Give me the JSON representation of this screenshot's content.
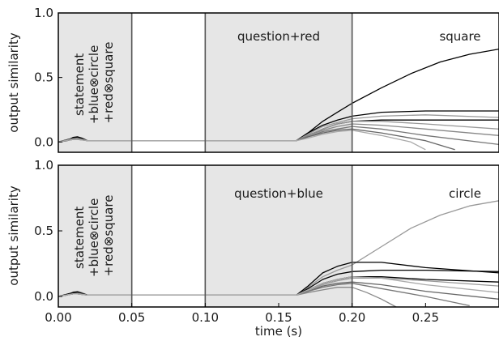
{
  "chart_data": [
    {
      "type": "line",
      "ylabel": "output similarity",
      "xlim": [
        0,
        0.3
      ],
      "ylim": [
        -0.08,
        1.0
      ],
      "yticks": [
        "0.0",
        "0.5",
        "1.0"
      ],
      "shaded_ranges": [
        [
          0,
          0.05
        ],
        [
          0.1,
          0.2
        ]
      ],
      "boundaries": [
        0.05,
        0.1,
        0.2
      ],
      "annotations": {
        "phase1": [
          "statement",
          "+blue⊗circle",
          "+red⊗square"
        ],
        "phase2": "question+red",
        "answer": "square"
      },
      "series": [
        {
          "color": "#000000",
          "x": [
            0,
            0.006,
            0.01,
            0.013,
            0.016,
            0.02,
            0.05,
            0.1,
            0.15,
            0.162,
            0.17,
            0.18,
            0.19,
            0.2,
            0.22,
            0.24,
            0.26,
            0.28,
            0.3
          ],
          "y": [
            0,
            0.01,
            0.035,
            0.04,
            0.03,
            0.01,
            0.01,
            0.01,
            0.01,
            0.01,
            0.07,
            0.16,
            0.23,
            0.3,
            0.42,
            0.53,
            0.62,
            0.68,
            0.72
          ]
        },
        {
          "color": "#000000",
          "x": [
            0,
            0.01,
            0.013,
            0.02,
            0.05,
            0.1,
            0.15,
            0.162,
            0.17,
            0.18,
            0.19,
            0.2,
            0.22,
            0.25,
            0.3
          ],
          "y": [
            0,
            0.03,
            0.035,
            0.01,
            0.01,
            0.01,
            0.01,
            0.01,
            0.07,
            0.13,
            0.17,
            0.2,
            0.23,
            0.24,
            0.24
          ]
        },
        {
          "color": "#000000",
          "x": [
            0,
            0.01,
            0.013,
            0.02,
            0.05,
            0.1,
            0.15,
            0.162,
            0.17,
            0.18,
            0.19,
            0.2,
            0.22,
            0.25,
            0.3
          ],
          "y": [
            0,
            0.02,
            0.03,
            0.01,
            0.01,
            0.01,
            0.01,
            0.01,
            0.05,
            0.1,
            0.14,
            0.16,
            0.17,
            0.17,
            0.17
          ]
        },
        {
          "color": "#999999",
          "x": [
            0,
            0.01,
            0.013,
            0.02,
            0.05,
            0.1,
            0.15,
            0.162,
            0.17,
            0.18,
            0.19,
            0.2,
            0.22,
            0.25,
            0.3
          ],
          "y": [
            0,
            0.025,
            0.03,
            0.01,
            0.01,
            0.01,
            0.01,
            0.01,
            0.06,
            0.12,
            0.15,
            0.18,
            0.2,
            0.21,
            0.19
          ]
        },
        {
          "color": "#999999",
          "x": [
            0,
            0.01,
            0.013,
            0.02,
            0.05,
            0.1,
            0.15,
            0.162,
            0.17,
            0.18,
            0.19,
            0.2,
            0.22,
            0.25,
            0.3
          ],
          "y": [
            0,
            0.02,
            0.025,
            0.01,
            0.01,
            0.01,
            0.01,
            0.01,
            0.05,
            0.1,
            0.14,
            0.16,
            0.16,
            0.14,
            0.1
          ]
        },
        {
          "color": "#888888",
          "x": [
            0,
            0.01,
            0.013,
            0.02,
            0.05,
            0.1,
            0.15,
            0.162,
            0.17,
            0.18,
            0.19,
            0.2,
            0.22,
            0.25,
            0.3
          ],
          "y": [
            0,
            0.02,
            0.025,
            0.01,
            0.01,
            0.01,
            0.01,
            0.01,
            0.05,
            0.09,
            0.12,
            0.14,
            0.13,
            0.1,
            0.05
          ]
        },
        {
          "color": "#777777",
          "x": [
            0,
            0.01,
            0.013,
            0.02,
            0.05,
            0.1,
            0.15,
            0.162,
            0.17,
            0.18,
            0.19,
            0.2,
            0.22,
            0.25,
            0.3
          ],
          "y": [
            0,
            0.02,
            0.025,
            0.01,
            0.01,
            0.01,
            0.01,
            0.01,
            0.04,
            0.08,
            0.1,
            0.12,
            0.1,
            0.05,
            -0.02
          ]
        },
        {
          "color": "#666666",
          "x": [
            0,
            0.01,
            0.013,
            0.02,
            0.05,
            0.1,
            0.15,
            0.162,
            0.17,
            0.18,
            0.19,
            0.2,
            0.22,
            0.25,
            0.27
          ],
          "y": [
            0,
            0.02,
            0.02,
            0.01,
            0.01,
            0.01,
            0.01,
            0.01,
            0.04,
            0.07,
            0.09,
            0.1,
            0.07,
            0.01,
            -0.06
          ]
        },
        {
          "color": "#aaaaaa",
          "x": [
            0,
            0.01,
            0.013,
            0.02,
            0.05,
            0.1,
            0.15,
            0.162,
            0.17,
            0.18,
            0.19,
            0.2,
            0.22,
            0.24,
            0.25
          ],
          "y": [
            0,
            0.02,
            0.02,
            0.01,
            0.01,
            0.01,
            0.01,
            0.01,
            0.03,
            0.06,
            0.08,
            0.09,
            0.05,
            0.0,
            -0.06
          ]
        }
      ]
    },
    {
      "type": "line",
      "ylabel": "output similarity",
      "xlabel": "time (s)",
      "xlim": [
        0,
        0.3
      ],
      "ylim": [
        -0.08,
        1.0
      ],
      "xticks": [
        "0.00",
        "0.05",
        "0.10",
        "0.15",
        "0.20",
        "0.25"
      ],
      "yticks": [
        "0.0",
        "0.5",
        "1.0"
      ],
      "shaded_ranges": [
        [
          0,
          0.05
        ],
        [
          0.1,
          0.2
        ]
      ],
      "boundaries": [
        0.05,
        0.1,
        0.2
      ],
      "annotations": {
        "phase1": [
          "statement",
          "+blue⊗circle",
          "+red⊗square"
        ],
        "phase2": "question+blue",
        "answer": "circle"
      },
      "series": [
        {
          "color": "#999999",
          "x": [
            0,
            0.006,
            0.01,
            0.013,
            0.016,
            0.02,
            0.05,
            0.1,
            0.15,
            0.162,
            0.17,
            0.18,
            0.19,
            0.2,
            0.22,
            0.24,
            0.26,
            0.28,
            0.3
          ],
          "y": [
            0,
            0.01,
            0.035,
            0.04,
            0.03,
            0.01,
            0.01,
            0.01,
            0.01,
            0.01,
            0.07,
            0.15,
            0.2,
            0.24,
            0.38,
            0.52,
            0.62,
            0.69,
            0.73
          ]
        },
        {
          "color": "#000000",
          "x": [
            0,
            0.01,
            0.013,
            0.02,
            0.05,
            0.1,
            0.15,
            0.162,
            0.17,
            0.18,
            0.19,
            0.2,
            0.22,
            0.25,
            0.3
          ],
          "y": [
            0,
            0.03,
            0.035,
            0.01,
            0.01,
            0.01,
            0.01,
            0.01,
            0.08,
            0.18,
            0.23,
            0.26,
            0.26,
            0.22,
            0.18
          ]
        },
        {
          "color": "#000000",
          "x": [
            0,
            0.01,
            0.013,
            0.02,
            0.05,
            0.1,
            0.15,
            0.162,
            0.17,
            0.18,
            0.19,
            0.2,
            0.22,
            0.25,
            0.3
          ],
          "y": [
            0,
            0.025,
            0.03,
            0.01,
            0.01,
            0.01,
            0.01,
            0.01,
            0.06,
            0.13,
            0.17,
            0.19,
            0.2,
            0.2,
            0.19
          ]
        },
        {
          "color": "#000000",
          "x": [
            0,
            0.01,
            0.013,
            0.02,
            0.05,
            0.1,
            0.15,
            0.162,
            0.17,
            0.18,
            0.19,
            0.2,
            0.22,
            0.25,
            0.3
          ],
          "y": [
            0,
            0.02,
            0.025,
            0.01,
            0.01,
            0.01,
            0.01,
            0.01,
            0.05,
            0.1,
            0.13,
            0.15,
            0.15,
            0.13,
            0.11
          ]
        },
        {
          "color": "#999999",
          "x": [
            0,
            0.01,
            0.013,
            0.02,
            0.05,
            0.1,
            0.15,
            0.162,
            0.17,
            0.18,
            0.19,
            0.2,
            0.22,
            0.25,
            0.3
          ],
          "y": [
            0,
            0.02,
            0.025,
            0.01,
            0.01,
            0.01,
            0.01,
            0.01,
            0.05,
            0.09,
            0.12,
            0.14,
            0.14,
            0.12,
            0.08
          ]
        },
        {
          "color": "#666666",
          "x": [
            0,
            0.01,
            0.013,
            0.02,
            0.05,
            0.1,
            0.15,
            0.162,
            0.17,
            0.18,
            0.19,
            0.2,
            0.22,
            0.25,
            0.3
          ],
          "y": [
            0,
            0.02,
            0.02,
            0.01,
            0.01,
            0.01,
            0.01,
            0.01,
            0.04,
            0.08,
            0.1,
            0.11,
            0.09,
            0.04,
            -0.02
          ]
        },
        {
          "color": "#777777",
          "x": [
            0,
            0.01,
            0.013,
            0.02,
            0.05,
            0.1,
            0.15,
            0.162,
            0.17,
            0.18,
            0.19,
            0.2,
            0.22,
            0.25,
            0.28
          ],
          "y": [
            0,
            0.02,
            0.02,
            0.01,
            0.01,
            0.01,
            0.01,
            0.01,
            0.04,
            0.07,
            0.09,
            0.1,
            0.06,
            0.0,
            -0.07
          ]
        },
        {
          "color": "#888888",
          "x": [
            0,
            0.01,
            0.013,
            0.02,
            0.05,
            0.1,
            0.15,
            0.162,
            0.17,
            0.18,
            0.19,
            0.2,
            0.21,
            0.22,
            0.23
          ],
          "y": [
            0,
            0.02,
            0.02,
            0.01,
            0.01,
            0.01,
            0.01,
            0.01,
            0.03,
            0.05,
            0.07,
            0.07,
            0.03,
            -0.02,
            -0.08
          ]
        },
        {
          "color": "#aaaaaa",
          "x": [
            0,
            0.01,
            0.013,
            0.02,
            0.05,
            0.1,
            0.15,
            0.162,
            0.17,
            0.18,
            0.19,
            0.2,
            0.22,
            0.25,
            0.3
          ],
          "y": [
            0,
            0.02,
            0.02,
            0.01,
            0.01,
            0.01,
            0.01,
            0.01,
            0.05,
            0.1,
            0.13,
            0.15,
            0.14,
            0.09,
            0.03
          ]
        }
      ]
    }
  ]
}
